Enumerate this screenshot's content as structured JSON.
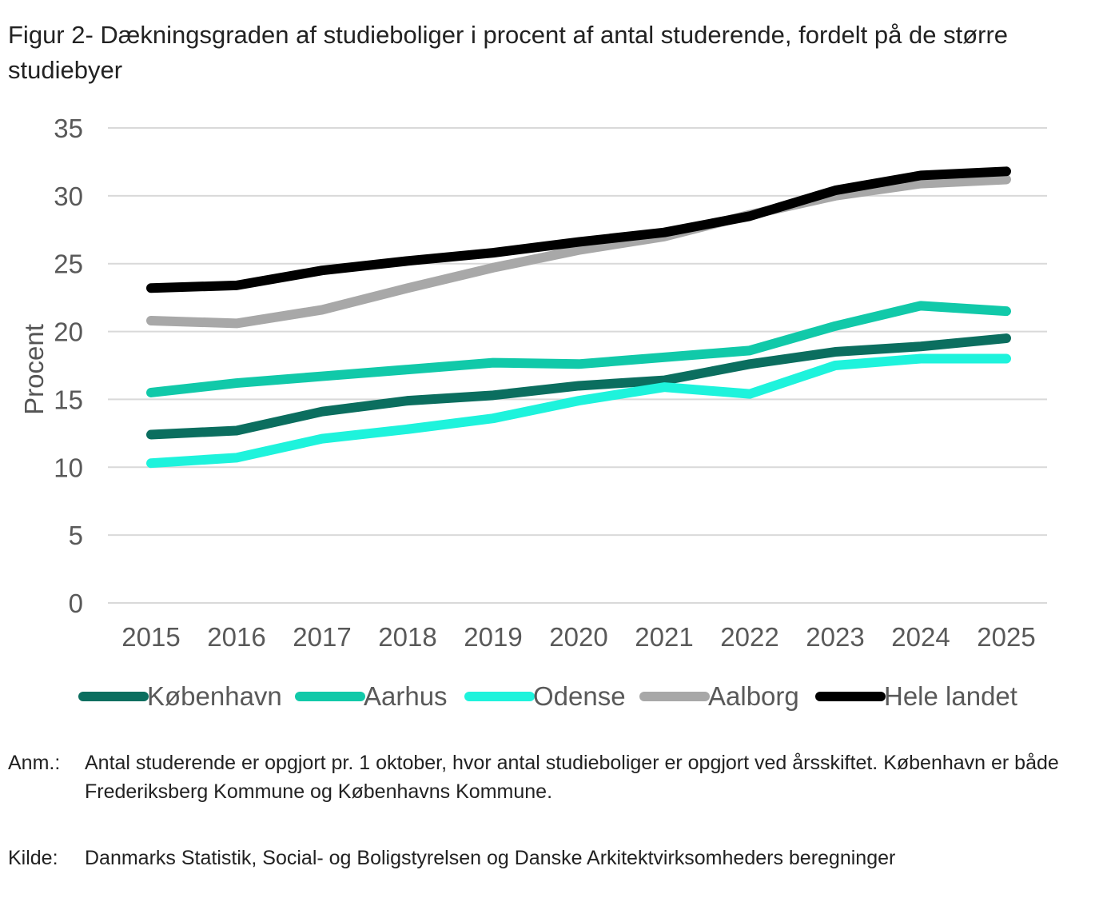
{
  "title": "Figur 2- Dækningsgraden af studieboliger i procent af antal studerende, fordelt på de større studiebyer",
  "chart_data": {
    "type": "line",
    "ylabel": "Procent",
    "ylim": [
      0,
      35
    ],
    "yticks": [
      0,
      5,
      10,
      15,
      20,
      25,
      30,
      35
    ],
    "grid": true,
    "legend": "bottom",
    "categories": [
      "2015",
      "2016",
      "2017",
      "2018",
      "2019",
      "2020",
      "2021",
      "2022",
      "2023",
      "2024",
      "2025"
    ],
    "series": [
      {
        "name": "København",
        "color": "#0b6e5f",
        "values": [
          12.4,
          12.7,
          14.1,
          14.9,
          15.3,
          16.0,
          16.4,
          17.6,
          18.5,
          18.9,
          19.5
        ]
      },
      {
        "name": "Aarhus",
        "color": "#11c9a9",
        "values": [
          15.5,
          16.2,
          16.7,
          17.2,
          17.7,
          17.6,
          18.1,
          18.6,
          20.4,
          21.9,
          21.5
        ]
      },
      {
        "name": "Odense",
        "color": "#1ef3dc",
        "values": [
          10.3,
          10.7,
          12.1,
          12.8,
          13.6,
          14.9,
          15.9,
          15.4,
          17.5,
          18.0,
          18.0
        ]
      },
      {
        "name": "Aalborg",
        "color": "#a8a8a8",
        "values": [
          20.8,
          20.6,
          21.6,
          23.2,
          24.7,
          26.0,
          27.0,
          28.6,
          30.0,
          30.9,
          31.2
        ]
      },
      {
        "name": "Hele landet",
        "color": "#000000",
        "values": [
          23.2,
          23.4,
          24.5,
          25.2,
          25.8,
          26.6,
          27.3,
          28.5,
          30.4,
          31.5,
          31.8
        ]
      }
    ]
  },
  "notes": {
    "anm_label": "Anm.:",
    "anm_text": "Antal studerende er opgjort pr. 1 oktober, hvor antal studieboliger er opgjort ved årsskiftet. København er både Frederiksberg Kommune og Københavns Kommune.",
    "kilde_label": "Kilde:",
    "kilde_text": "Danmarks Statistik, Social- og Boligstyrelsen og Danske Arkitektvirksomheders beregninger"
  }
}
